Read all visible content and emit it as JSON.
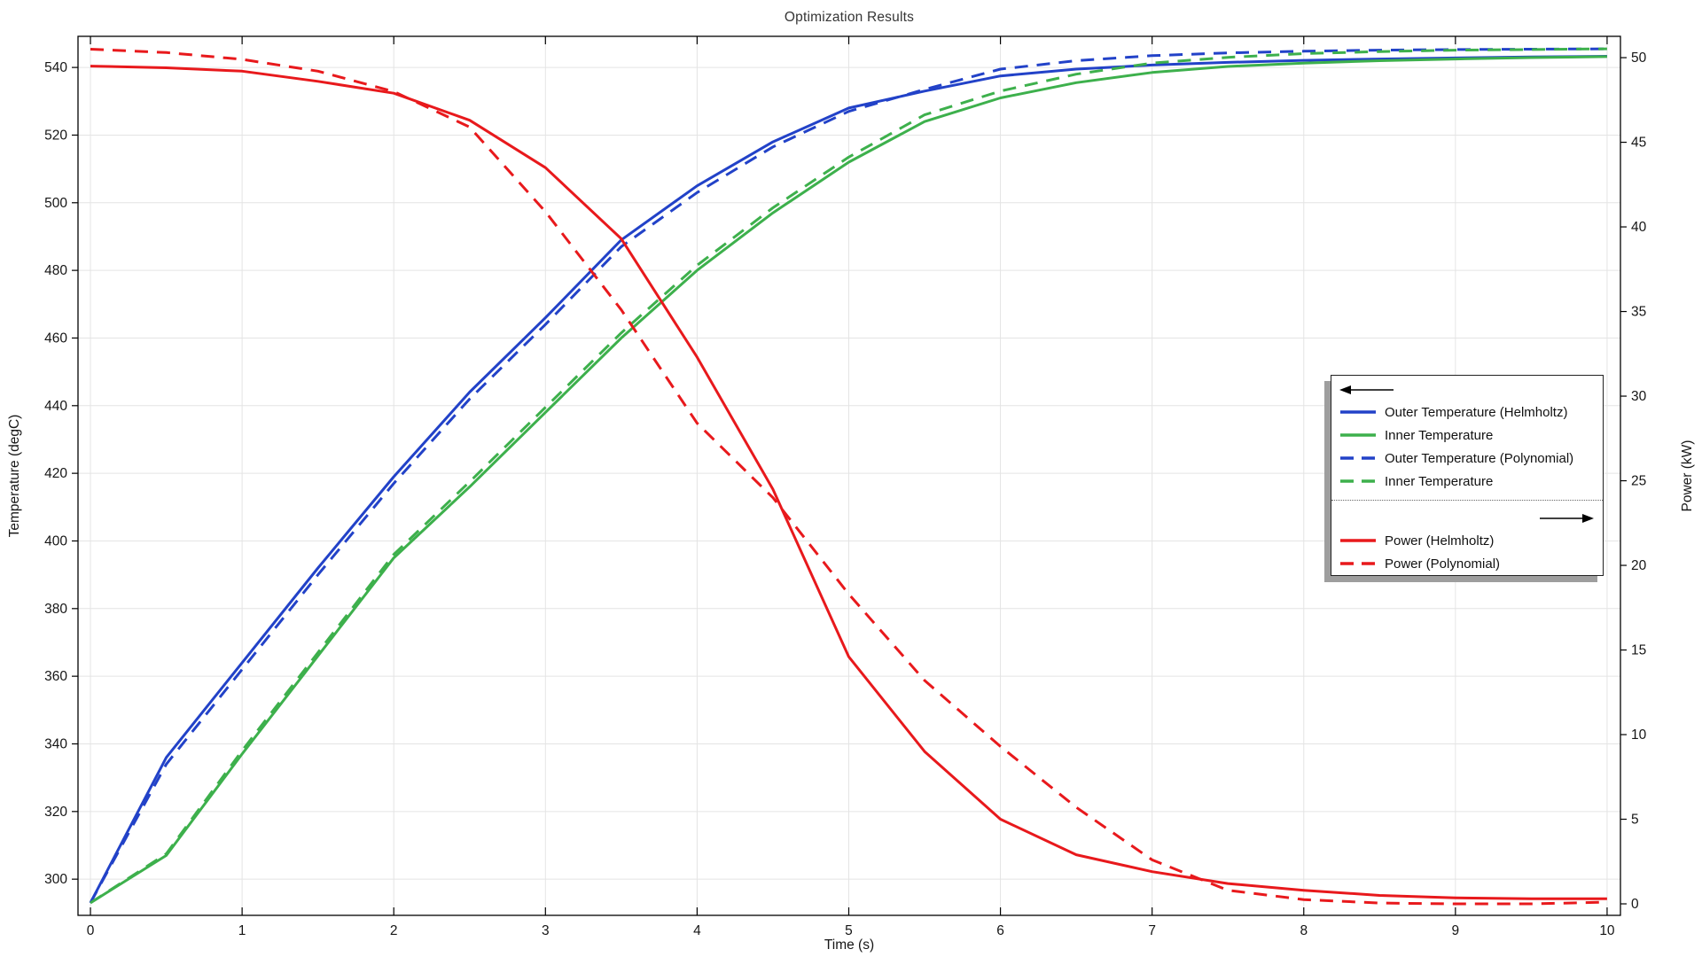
{
  "chart_data": {
    "type": "line",
    "title": "Optimization Results",
    "xlabel": "Time (s)",
    "ylabel_left": "Temperature (degC)",
    "ylabel_right": "Power (kW)",
    "grid": true,
    "background": "#ffffff",
    "grid_color": "#e4e4e4",
    "frame_color": "#000000",
    "x_axis": {
      "min": -0.082,
      "max": 10.088,
      "ticks": [
        0,
        1,
        2,
        3,
        4,
        5,
        6,
        7,
        8,
        9,
        10
      ]
    },
    "temp_axis": {
      "min": 289.3,
      "max": 549.2,
      "ticks": [
        300,
        320,
        340,
        360,
        380,
        400,
        420,
        440,
        460,
        480,
        500,
        520,
        540
      ]
    },
    "power_axis": {
      "min": -0.68,
      "max": 51.26,
      "ticks": [
        0,
        5,
        10,
        15,
        20,
        25,
        30,
        35,
        40,
        45,
        50
      ]
    },
    "x": [
      0,
      0.5,
      1,
      1.5,
      2,
      2.5,
      3,
      3.5,
      4,
      4.5,
      5,
      5.5,
      6,
      6.5,
      7,
      7.5,
      8,
      8.5,
      9,
      9.5,
      10
    ],
    "series": [
      {
        "name": "Outer Temperature (Helmholtz)",
        "axis": "temp",
        "style": "solid",
        "color": "#2242c8",
        "values": [
          293,
          336,
          364,
          392,
          419,
          444,
          466,
          489,
          505,
          518,
          528,
          533,
          537.5,
          539.5,
          540.7,
          541.5,
          542.1,
          542.5,
          542.8,
          543.1,
          543.3
        ]
      },
      {
        "name": "Inner Temperature",
        "axis": "temp",
        "style": "solid",
        "color": "#3db04c",
        "values": [
          293,
          307,
          337,
          366,
          395,
          416,
          438,
          460,
          480,
          497,
          512,
          524,
          531,
          535.5,
          538.5,
          540.3,
          541.3,
          542,
          542.5,
          542.9,
          543.2
        ]
      },
      {
        "name": "Outer Temperature (Polynomial)",
        "axis": "temp",
        "style": "dashed",
        "color": "#2242c8",
        "values": [
          293,
          334,
          362,
          390,
          417,
          442,
          464,
          487,
          503,
          516.5,
          527,
          533.5,
          539.5,
          542,
          543.5,
          544.3,
          544.8,
          545.1,
          545.3,
          545.4,
          545.5
        ]
      },
      {
        "name": "Inner Temperature",
        "axis": "temp",
        "style": "dashed",
        "color": "#3db04c",
        "values": [
          293,
          307.5,
          338,
          367,
          396,
          417.5,
          439.5,
          461.5,
          481.5,
          498.5,
          513.5,
          526,
          533,
          538,
          541.3,
          543,
          544.1,
          544.7,
          545.1,
          545.3,
          545.5
        ]
      },
      {
        "name": "Power (Helmholtz)",
        "axis": "power",
        "style": "solid",
        "color": "#e8191c",
        "values": [
          49.5,
          49.4,
          49.2,
          48.6,
          47.9,
          46.3,
          43.5,
          39.3,
          32.3,
          24.5,
          14.6,
          9,
          5,
          2.9,
          1.9,
          1.2,
          0.8,
          0.5,
          0.35,
          0.3,
          0.3
        ]
      },
      {
        "name": "Power (Polynomial)",
        "axis": "power",
        "style": "dashed",
        "color": "#e8191c",
        "values": [
          50.5,
          50.3,
          49.9,
          49.2,
          48,
          45.9,
          40.9,
          35.1,
          28.4,
          24,
          18.3,
          13.2,
          9.3,
          5.7,
          2.6,
          0.8,
          0.25,
          0.05,
          0,
          0,
          0.1
        ]
      }
    ],
    "legend": {
      "position": "right-middle",
      "items": [
        "Outer Temperature (Helmholtz)",
        "Inner Temperature",
        "Outer Temperature (Polynomial)",
        "Inner Temperature",
        "Power (Helmholtz)",
        "Power (Polynomial)"
      ]
    }
  }
}
